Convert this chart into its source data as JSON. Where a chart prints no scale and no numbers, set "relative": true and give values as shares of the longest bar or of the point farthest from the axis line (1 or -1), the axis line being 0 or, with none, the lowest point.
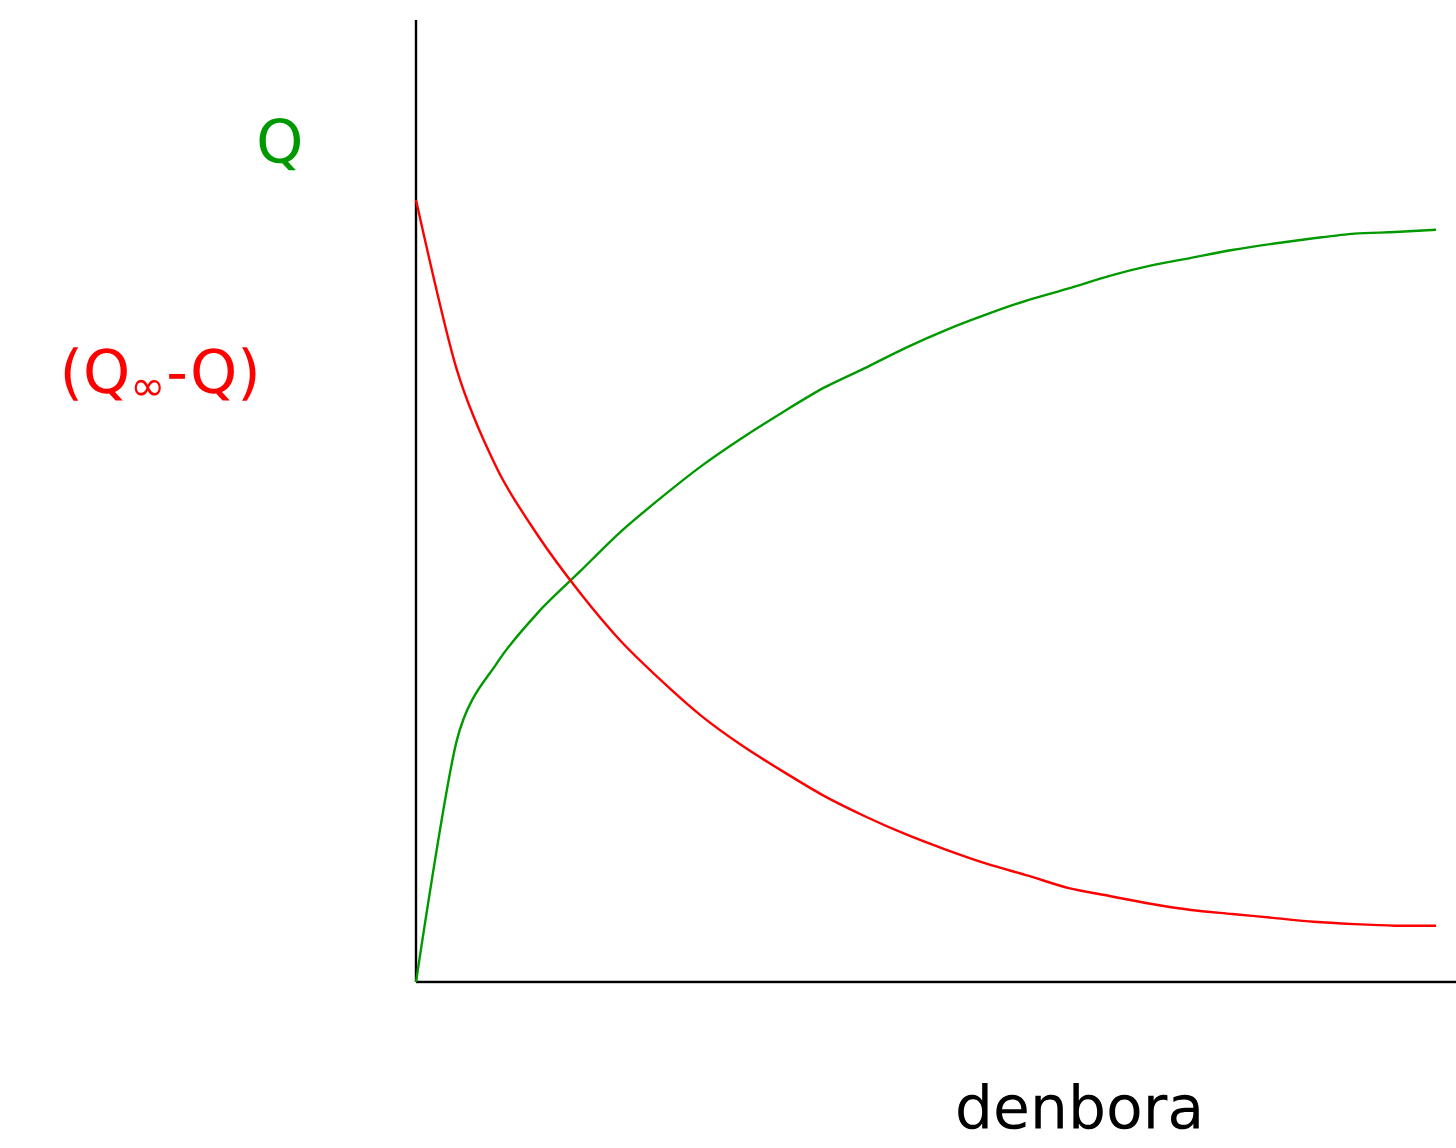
{
  "chart_data": {
    "type": "line",
    "relative": true,
    "xlabel": "denbora",
    "categories": [
      null,
      null,
      null,
      null,
      null,
      null,
      null,
      null,
      null,
      null,
      null,
      null,
      null,
      null,
      null,
      null,
      null,
      null,
      null,
      null,
      null,
      null,
      null,
      null,
      null,
      null
    ],
    "series": [
      {
        "name": "Q",
        "color": "#009900",
        "values": [
          0,
          0.309,
          0.409,
          0.473,
          0.524,
          0.575,
          0.619,
          0.66,
          0.696,
          0.729,
          0.76,
          0.785,
          0.811,
          0.834,
          0.854,
          0.872,
          0.887,
          0.903,
          0.916,
          0.926,
          0.936,
          0.944,
          0.951,
          0.957,
          0.959,
          0.962
        ]
      },
      {
        "name": "(Q$_{∞}$-Q)",
        "color": "#ff0000",
        "values": [
          1,
          0.783,
          0.655,
          0.57,
          0.499,
          0.437,
          0.386,
          0.34,
          0.302,
          0.269,
          0.238,
          0.212,
          0.189,
          0.169,
          0.151,
          0.136,
          0.12,
          0.11,
          0.1,
          0.092,
          0.087,
          0.082,
          0.077,
          0.074,
          0.072,
          0.072
        ]
      }
    ]
  }
}
